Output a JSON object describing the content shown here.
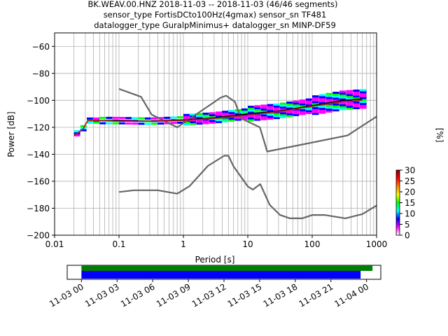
{
  "title_lines": [
    "BK.WEAV.00.HNZ   2018-11-03 -- 2018-11-03  (46/46 segments)",
    "sensor_type FortisDCto100Hz(4gmax) sensor_sn TF481",
    "datalogger_type GuralpMinimus+ datalogger_sn MINP-DF59"
  ],
  "colors": {
    "noise_model": "#666666",
    "mode_line": "#000000",
    "mean_line": "#b22222",
    "bar_top": "#008000",
    "bar_bottom": "#0000ff",
    "grid": "#b0b0b0"
  },
  "chart_data": [
    {
      "type": "heatmap",
      "subtype": "probabilistic power spectral density",
      "xlabel": "Period [s]",
      "ylabel": "Power [dB]",
      "x_scale": "log",
      "xlim": [
        0.01,
        1000
      ],
      "ylim": [
        -200,
        -50
      ],
      "x_ticks": [
        0.01,
        0.1,
        1,
        10,
        100,
        1000
      ],
      "x_tick_labels": [
        "0.01",
        "0.1",
        "1",
        "10",
        "100",
        "1000"
      ],
      "y_ticks": [
        -60,
        -80,
        -100,
        -120,
        -140,
        -160,
        -180,
        -200
      ],
      "y_tick_labels": [
        "−60",
        "−80",
        "−100",
        "−120",
        "−140",
        "−160",
        "−180",
        "−200"
      ],
      "grid": true,
      "colorbar": {
        "label": "[%]",
        "range": [
          0,
          30
        ],
        "ticks": [
          0,
          5,
          10,
          15,
          20,
          25,
          30
        ],
        "tick_labels": [
          "0",
          "5",
          "10",
          "15",
          "20",
          "25",
          "30"
        ],
        "colormap": [
          "#ffffff",
          "#ff00ff",
          "#0000ff",
          "#00ffff",
          "#00ff00",
          "#ffff00",
          "#ff8000",
          "#ff0000",
          "#800000"
        ]
      },
      "series": [
        {
          "role": "high-noise-model",
          "points": [
            [
              0.1,
              -91.5
            ],
            [
              0.22,
              -97.4
            ],
            [
              0.32,
              -110.5
            ],
            [
              0.8,
              -120
            ],
            [
              3.8,
              -98
            ],
            [
              4.6,
              -96.5
            ],
            [
              6.3,
              -101
            ],
            [
              7.9,
              -113.5
            ],
            [
              15.4,
              -120
            ],
            [
              20,
              -138
            ],
            [
              354.8,
              -126
            ],
            [
              1000,
              -112
            ]
          ]
        },
        {
          "role": "low-noise-model",
          "points": [
            [
              0.1,
              -168
            ],
            [
              0.17,
              -166.7
            ],
            [
              0.4,
              -166.7
            ],
            [
              0.8,
              -169.2
            ],
            [
              1.24,
              -163.7
            ],
            [
              2.4,
              -148.6
            ],
            [
              4.3,
              -141.1
            ],
            [
              5,
              -141.1
            ],
            [
              6,
              -149
            ],
            [
              10,
              -163.8
            ],
            [
              12,
              -166.2
            ],
            [
              15.6,
              -162.1
            ],
            [
              21.9,
              -177.5
            ],
            [
              31.6,
              -185
            ],
            [
              45,
              -187.5
            ],
            [
              70,
              -187.5
            ],
            [
              101,
              -185
            ],
            [
              154,
              -185
            ],
            [
              328,
              -187.5
            ],
            [
              600,
              -184.4
            ],
            [
              1000,
              -178
            ]
          ]
        },
        {
          "role": "mode",
          "points": [
            [
              0.02,
              -126
            ],
            [
              0.025,
              -123
            ],
            [
              0.028,
              -121
            ],
            [
              0.03,
              -118
            ],
            [
              0.033,
              -115
            ],
            [
              0.05,
              -115
            ],
            [
              0.1,
              -115
            ],
            [
              0.3,
              -115.5
            ],
            [
              1,
              -114.5
            ],
            [
              3,
              -113
            ],
            [
              10,
              -110
            ],
            [
              30,
              -108
            ],
            [
              100,
              -104
            ],
            [
              300,
              -100
            ],
            [
              600,
              -99
            ]
          ]
        },
        {
          "role": "mean",
          "points": [
            [
              0.02,
              -126
            ],
            [
              0.025,
              -123
            ],
            [
              0.028,
              -121
            ],
            [
              0.03,
              -118
            ],
            [
              0.033,
              -115
            ],
            [
              0.05,
              -115
            ],
            [
              0.1,
              -115.5
            ],
            [
              0.3,
              -115.5
            ],
            [
              1,
              -115
            ],
            [
              3,
              -113.5
            ],
            [
              10,
              -111
            ],
            [
              30,
              -108.5
            ],
            [
              100,
              -104.5
            ],
            [
              300,
              -101
            ],
            [
              600,
              -100
            ]
          ]
        }
      ],
      "density_bands": [
        {
          "period": [
            0.02,
            0.05
          ],
          "spread": 1.5
        },
        {
          "period": [
            0.05,
            1
          ],
          "spread": 2
        },
        {
          "period": [
            1,
            10
          ],
          "spread": 3.5
        },
        {
          "period": [
            10,
            100
          ],
          "spread": 5
        },
        {
          "period": [
            100,
            700
          ],
          "spread": 6.5
        }
      ]
    },
    {
      "type": "timeline",
      "x_tick_labels": [
        "11-03 00",
        "11-03 03",
        "11-03 06",
        "11-03 09",
        "11-03 12",
        "11-03 15",
        "11-03 18",
        "11-03 21",
        "11-04 00"
      ],
      "x_tick_hours": [
        0,
        3,
        6,
        9,
        12,
        15,
        18,
        21,
        24
      ],
      "xlim_hours": [
        -1.2,
        25.2
      ],
      "bars": [
        {
          "role": "data-coverage",
          "start_hour": 0,
          "end_hour": 24.5
        },
        {
          "role": "psd-segments",
          "start_hour": 0,
          "end_hour": 23.5
        }
      ]
    }
  ]
}
